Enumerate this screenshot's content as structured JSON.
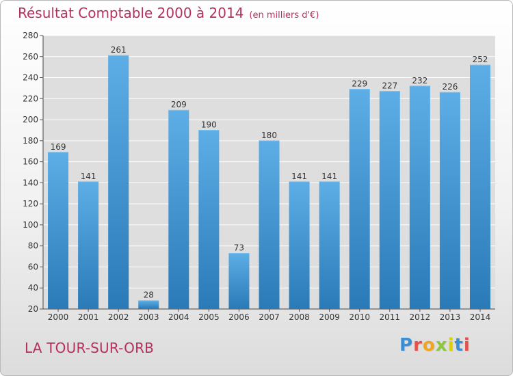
{
  "title": "Résultat Comptable 2000 à 2014",
  "unit_note": "(en milliers d'€)",
  "location": "LA TOUR-SUR-ORB",
  "logo": {
    "text": "Proxiti",
    "letters": [
      {
        "ch": "P",
        "color": "#3a8fd4"
      },
      {
        "ch": "r",
        "color": "#e5504b"
      },
      {
        "ch": "o",
        "color": "#f2a51c"
      },
      {
        "ch": "x",
        "color": "#8dc63f"
      },
      {
        "ch": "i",
        "color": "#d9d400"
      },
      {
        "ch": "t",
        "color": "#3a8fd4"
      },
      {
        "ch": "i",
        "color": "#e5504b"
      }
    ]
  },
  "colors": {
    "title": "#b5305e",
    "bar_light": "#5dade6",
    "bar_dark": "#2a7ab8",
    "plot_bg": "#dedede",
    "grid": "#ffffff"
  },
  "chart_data": {
    "type": "bar",
    "title": "Résultat Comptable 2000 à 2014",
    "subtitle": "(en milliers d'€)",
    "categories": [
      "2000",
      "2001",
      "2002",
      "2003",
      "2004",
      "2005",
      "2006",
      "2007",
      "2008",
      "2009",
      "2010",
      "2011",
      "2012",
      "2013",
      "2014"
    ],
    "values": [
      169,
      141,
      261,
      28,
      209,
      190,
      73,
      180,
      141,
      141,
      229,
      227,
      232,
      226,
      252
    ],
    "ylim": [
      20,
      280
    ],
    "yticks": [
      20,
      40,
      60,
      80,
      100,
      120,
      140,
      160,
      180,
      200,
      220,
      240,
      260,
      280
    ],
    "grid": true,
    "data_labels": true
  }
}
